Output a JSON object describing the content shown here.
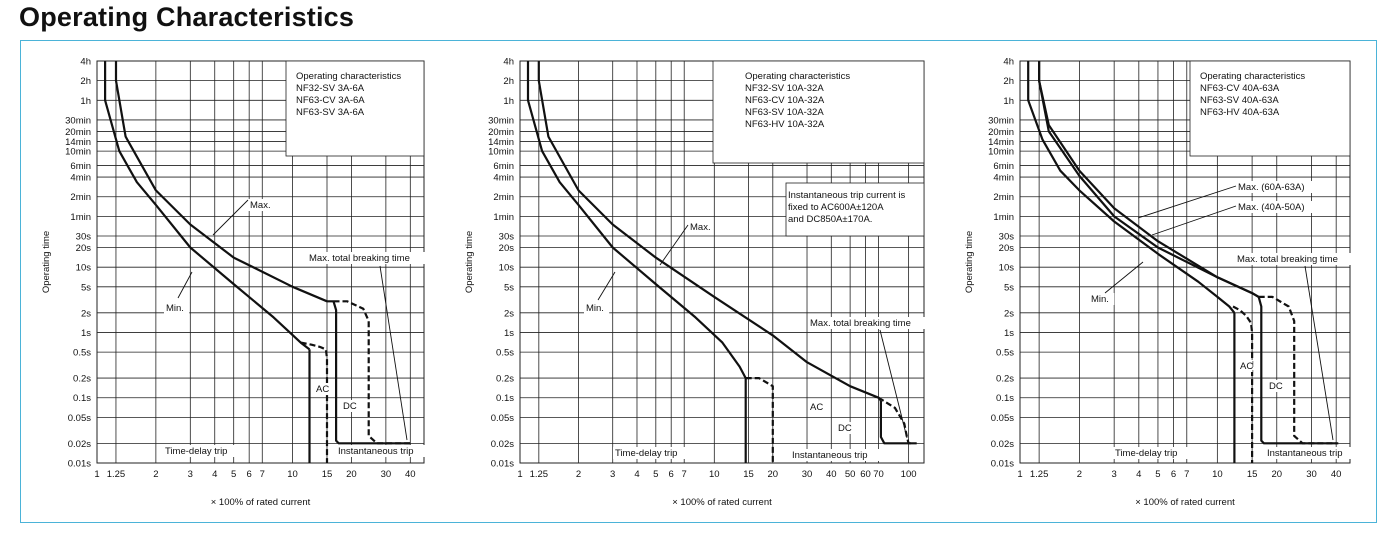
{
  "page_title": "Operating Characteristics",
  "colors": {
    "frame_border": "#4bb3d8",
    "ink": "#111111",
    "grid": "#222222"
  },
  "chart_data": [
    {
      "type": "line",
      "xlabel": "× 100% of rated current",
      "ylabel": "Operating time",
      "scale": {
        "x": "log",
        "y": "log"
      },
      "xlim": [
        1,
        47
      ],
      "x_ticks": [
        "1",
        "1.25",
        "2",
        "3",
        "4",
        "5",
        "6",
        "7",
        "10",
        "15",
        "20",
        "30",
        "40"
      ],
      "y_ticks": [
        "4h",
        "2h",
        "1h",
        "30min",
        "20min",
        "14min",
        "10min",
        "6min",
        "4min",
        "2min",
        "1min",
        "30s",
        "20s",
        "10s",
        "5s",
        "2s",
        "1s",
        "0.5s",
        "0.2s",
        "0.1s",
        "0.05s",
        "0.02s",
        "0.01s"
      ],
      "info_box": [
        "Operating characteristics",
        "NF32-SV  3A-6A",
        "NF63-CV  3A-6A",
        "NF63-SV  3A-6A"
      ],
      "notes": [],
      "annotations": {
        "max": "Max.",
        "min": "Min.",
        "max_total": "Max. total breaking time",
        "ac": "AC",
        "dc": "DC",
        "time_delay": "Time-delay trip",
        "instantaneous": "Instantaneous trip"
      },
      "series": [
        {
          "name": "Max.",
          "style": "solid",
          "x": [
            1.25,
            1.25,
            1.4,
            2,
            3,
            5,
            10,
            15,
            16.2
          ],
          "y": [
            14400,
            7200,
            1000,
            150,
            45,
            14,
            5,
            3,
            3
          ]
        },
        {
          "name": "Max. (DC)",
          "style": "solid",
          "x": [
            16.2,
            16.7,
            16.7,
            17.2,
            17.8,
            40
          ],
          "y": [
            3,
            2.2,
            0.022,
            0.02,
            0.02,
            0.02
          ]
        },
        {
          "name": "Min.",
          "style": "solid",
          "x": [
            1.1,
            1.1,
            1.3,
            1.6,
            2,
            3,
            5,
            8,
            11,
            12.2
          ],
          "y": [
            14400,
            3600,
            600,
            200,
            90,
            20,
            5.5,
            1.7,
            0.7,
            0.55
          ]
        },
        {
          "name": "Min. (AC)",
          "style": "solid",
          "x": [
            12.2,
            12.2
          ],
          "y": [
            0.55,
            0.01
          ]
        },
        {
          "name": "Max. total breaking time",
          "style": "dashed",
          "x": [
            16.2,
            19,
            23,
            24.5,
            24.5,
            27,
            41
          ],
          "y": [
            3,
            3,
            2.3,
            1.5,
            0.026,
            0.02,
            0.02
          ]
        },
        {
          "name": "Min. (dashed)",
          "style": "dashed",
          "x": [
            11,
            12.5,
            13.8,
            14.8,
            15,
            15
          ],
          "y": [
            0.7,
            0.65,
            0.6,
            0.55,
            0.4,
            0.01
          ]
        }
      ]
    },
    {
      "type": "line",
      "xlabel": "× 100% of rated current",
      "ylabel": "Operating time",
      "scale": {
        "x": "log",
        "y": "log"
      },
      "xlim": [
        1,
        120
      ],
      "x_ticks": [
        "1",
        "1.25",
        "2",
        "3",
        "4",
        "5",
        "6",
        "7",
        "10",
        "15",
        "20",
        "30",
        "40",
        "50",
        "60",
        "70",
        "100"
      ],
      "y_ticks": [
        "4h",
        "2h",
        "1h",
        "30min",
        "20min",
        "14min",
        "10min",
        "6min",
        "4min",
        "2min",
        "1min",
        "30s",
        "20s",
        "10s",
        "5s",
        "2s",
        "1s",
        "0.5s",
        "0.2s",
        "0.1s",
        "0.05s",
        "0.02s",
        "0.01s"
      ],
      "info_box": [
        "Operating characteristics",
        "NF32-SV  10A-32A",
        "NF63-CV  10A-32A",
        "NF63-SV  10A-32A",
        "NF63-HV  10A-32A"
      ],
      "notes": [
        "Instantaneous trip current is",
        "fixed to AC600A±120A",
        "and DC850A±170A."
      ],
      "annotations": {
        "max": "Max.",
        "min": "Min.",
        "max_total": "Max. total breaking time",
        "ac": "AC",
        "dc": "DC",
        "time_delay": "Time-delay trip",
        "instantaneous": "Instantaneous trip"
      },
      "series": [
        {
          "name": "Max.",
          "style": "solid",
          "x": [
            1.25,
            1.25,
            1.4,
            2,
            3,
            5,
            10,
            20,
            30,
            50,
            70,
            72
          ],
          "y": [
            14400,
            7200,
            1000,
            150,
            45,
            14,
            3.5,
            0.9,
            0.35,
            0.15,
            0.1,
            0.09
          ]
        },
        {
          "name": "Max. (DC)",
          "style": "solid",
          "x": [
            72,
            72,
            75,
            80,
            110
          ],
          "y": [
            0.09,
            0.025,
            0.02,
            0.02,
            0.02
          ]
        },
        {
          "name": "Min.",
          "style": "solid",
          "x": [
            1.1,
            1.1,
            1.3,
            1.6,
            2,
            3,
            5,
            8,
            11,
            13.5,
            14.5,
            14.5
          ],
          "y": [
            14400,
            3600,
            600,
            200,
            90,
            20,
            5.5,
            1.7,
            0.7,
            0.3,
            0.2,
            0.01
          ]
        },
        {
          "name": "Max. total breaking time",
          "style": "dashed",
          "x": [
            70,
            85,
            95,
            98,
            100,
            103
          ],
          "y": [
            0.1,
            0.07,
            0.04,
            0.025,
            0.02,
            0.02
          ]
        },
        {
          "name": "Min. (dashed)",
          "style": "dashed",
          "x": [
            14.5,
            17,
            20,
            20
          ],
          "y": [
            0.2,
            0.2,
            0.15,
            0.01
          ]
        }
      ]
    },
    {
      "type": "line",
      "xlabel": "× 100% of rated current",
      "ylabel": "Operating time",
      "scale": {
        "x": "log",
        "y": "log"
      },
      "xlim": [
        1,
        47
      ],
      "x_ticks": [
        "1",
        "1.25",
        "2",
        "3",
        "4",
        "5",
        "6",
        "7",
        "10",
        "15",
        "20",
        "30",
        "40"
      ],
      "y_ticks": [
        "4h",
        "2h",
        "1h",
        "30min",
        "20min",
        "14min",
        "10min",
        "6min",
        "4min",
        "2min",
        "1min",
        "30s",
        "20s",
        "10s",
        "5s",
        "2s",
        "1s",
        "0.5s",
        "0.2s",
        "0.1s",
        "0.05s",
        "0.02s",
        "0.01s"
      ],
      "info_box": [
        "Operating characteristics",
        "NF63-CV  40A-63A",
        "NF63-SV  40A-63A",
        "NF63-HV  40A-63A"
      ],
      "notes": [],
      "annotations": {
        "max_60_63": "Max. (60A-63A)",
        "max_40_50": "Max. (40A-50A)",
        "min": "Min.",
        "max_total": "Max. total breaking time",
        "ac": "AC",
        "dc": "DC",
        "time_delay": "Time-delay trip",
        "instantaneous": "Instantaneous trip"
      },
      "series": [
        {
          "name": "Max. (60A-63A)",
          "style": "solid",
          "x": [
            1.25,
            1.25,
            1.4,
            2,
            3,
            5,
            10,
            15,
            16.2
          ],
          "y": [
            14400,
            7200,
            1500,
            300,
            80,
            25,
            7,
            4,
            3.5
          ]
        },
        {
          "name": "Max. (40A-50A)",
          "style": "solid",
          "x": [
            1.25,
            1.25,
            1.4,
            2,
            3,
            5,
            10,
            15,
            16.2
          ],
          "y": [
            14400,
            7200,
            1200,
            250,
            60,
            20,
            7,
            4,
            3.5
          ]
        },
        {
          "name": "Max. (DC)",
          "style": "solid",
          "x": [
            16.2,
            16.7,
            16.7,
            17.2,
            17.8,
            40
          ],
          "y": [
            3.5,
            2.5,
            0.022,
            0.02,
            0.02,
            0.02
          ]
        },
        {
          "name": "Min.",
          "style": "solid",
          "x": [
            1.1,
            1.1,
            1.3,
            1.6,
            2,
            3,
            5,
            8,
            10,
            11.5,
            12.2
          ],
          "y": [
            14400,
            3600,
            900,
            300,
            150,
            50,
            16,
            6,
            3.5,
            2.5,
            2
          ]
        },
        {
          "name": "Min. (AC)",
          "style": "solid",
          "x": [
            12.2,
            12.2
          ],
          "y": [
            2,
            0.01
          ]
        },
        {
          "name": "Max. total breaking time",
          "style": "dashed",
          "x": [
            16.2,
            19,
            23,
            24.5,
            24.5,
            27,
            41
          ],
          "y": [
            3.5,
            3.5,
            2.5,
            1.5,
            0.026,
            0.02,
            0.02
          ]
        },
        {
          "name": "Min. (dashed)",
          "style": "dashed",
          "x": [
            12,
            13,
            14,
            14.8,
            15,
            15
          ],
          "y": [
            2.5,
            2.2,
            1.8,
            1.4,
            1,
            0.01
          ]
        }
      ]
    }
  ]
}
